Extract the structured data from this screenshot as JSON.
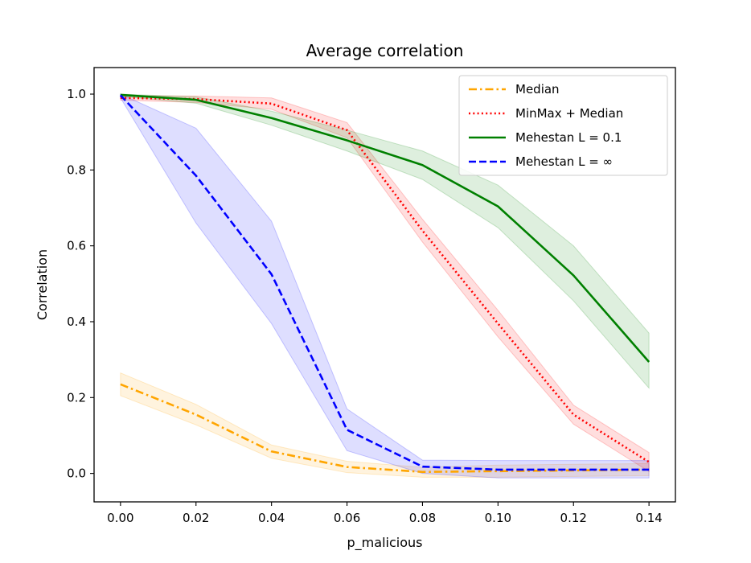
{
  "chart_data": {
    "type": "line",
    "title": "Average correlation",
    "xlabel": "p_malicious",
    "ylabel": "Correlation",
    "x": [
      0.0,
      0.02,
      0.04,
      0.06,
      0.08,
      0.1,
      0.12,
      0.14
    ],
    "xlim": [
      -0.007,
      0.147
    ],
    "ylim": [
      -0.075,
      1.07
    ],
    "xticks": [
      "0.00",
      "0.02",
      "0.04",
      "0.06",
      "0.08",
      "0.10",
      "0.12",
      "0.14"
    ],
    "xtick_values": [
      0.0,
      0.02,
      0.04,
      0.06,
      0.08,
      0.1,
      0.12,
      0.14
    ],
    "yticks": [
      "0.0",
      "0.2",
      "0.4",
      "0.6",
      "0.8",
      "1.0"
    ],
    "ytick_values": [
      0.0,
      0.2,
      0.4,
      0.6,
      0.8,
      1.0
    ],
    "grid": false,
    "legend_position": "top-right",
    "series": [
      {
        "name": "Median",
        "color": "#ffa500",
        "style": "dashdot",
        "values": [
          0.235,
          0.155,
          0.058,
          0.017,
          0.004,
          0.006,
          0.008,
          0.01
        ],
        "band_low": [
          0.205,
          0.128,
          0.04,
          0.002,
          -0.01,
          -0.01,
          -0.008,
          -0.006
        ],
        "band_high": [
          0.265,
          0.182,
          0.075,
          0.032,
          0.016,
          0.022,
          0.024,
          0.026
        ]
      },
      {
        "name": "MinMax +  Median",
        "color": "#ff0000",
        "style": "dotted",
        "values": [
          0.99,
          0.987,
          0.975,
          0.905,
          0.64,
          0.395,
          0.155,
          0.03
        ],
        "band_low": [
          0.984,
          0.978,
          0.96,
          0.885,
          0.61,
          0.36,
          0.13,
          0.005
        ],
        "band_high": [
          0.996,
          0.995,
          0.99,
          0.925,
          0.67,
          0.43,
          0.18,
          0.055
        ]
      },
      {
        "name": "Mehestan  L = 0.1",
        "color": "#008000",
        "style": "solid",
        "values": [
          0.998,
          0.985,
          0.937,
          0.878,
          0.813,
          0.704,
          0.522,
          0.294
        ],
        "band_low": [
          0.994,
          0.976,
          0.918,
          0.85,
          0.775,
          0.648,
          0.455,
          0.225
        ],
        "band_high": [
          1.0,
          0.993,
          0.955,
          0.905,
          0.85,
          0.76,
          0.6,
          0.37
        ]
      },
      {
        "name": "Mehestan  L = ∞",
        "color": "#0000ff",
        "style": "dashed",
        "values": [
          0.997,
          0.785,
          0.525,
          0.115,
          0.018,
          0.01,
          0.01,
          0.01
        ],
        "band_low": [
          0.99,
          0.66,
          0.395,
          0.06,
          0.0,
          -0.012,
          -0.012,
          -0.012
        ],
        "band_high": [
          1.0,
          0.91,
          0.665,
          0.17,
          0.035,
          0.034,
          0.034,
          0.034
        ]
      }
    ]
  }
}
